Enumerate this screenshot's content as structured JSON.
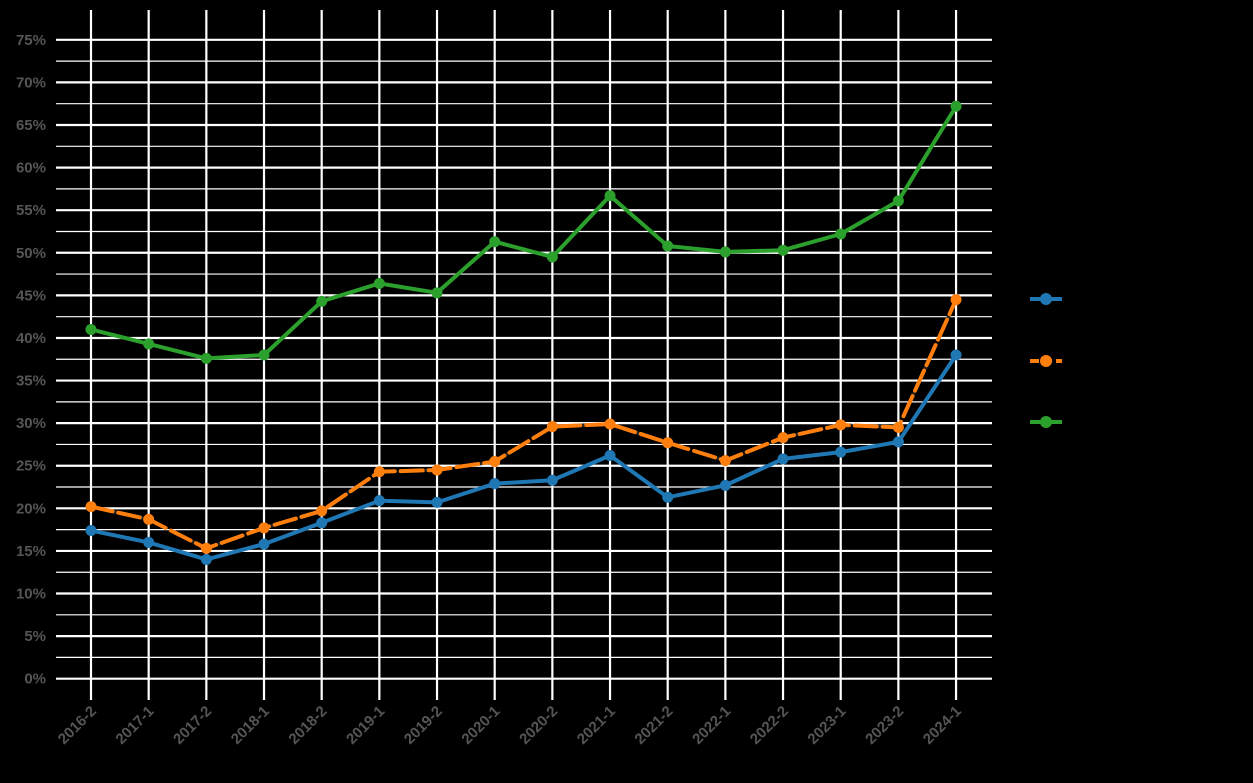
{
  "chart_data": {
    "type": "line",
    "title": "",
    "xlabel": "",
    "ylabel": "",
    "categories": [
      "2016-2",
      "2017-1",
      "2017-2",
      "2018-1",
      "2018-2",
      "2019-1",
      "2019-2",
      "2020-1",
      "2020-2",
      "2021-1",
      "2021-2",
      "2022-1",
      "2022-2",
      "2023-1",
      "2023-2",
      "2024-1"
    ],
    "ylim": [
      -2.5,
      78.5
    ],
    "yticks": [
      0,
      5,
      10,
      15,
      20,
      25,
      30,
      35,
      40,
      45,
      50,
      55,
      60,
      65,
      70,
      75
    ],
    "ytick_labels": [
      "0%",
      "5%",
      "10%",
      "15%",
      "20%",
      "25%",
      "30%",
      "35%",
      "40%",
      "45%",
      "50%",
      "55%",
      "60%",
      "65%",
      "70%",
      "75%"
    ],
    "grid": true,
    "legend": "right",
    "series": [
      {
        "color": "#1f77b4",
        "dashed": false,
        "values": [
          17.4,
          16.0,
          14.0,
          15.8,
          18.3,
          20.9,
          20.7,
          22.9,
          23.3,
          26.2,
          21.3,
          22.7,
          25.8,
          26.6,
          27.8,
          38.0
        ]
      },
      {
        "color": "#ff7f0e",
        "dashed": true,
        "values": [
          20.2,
          18.7,
          15.3,
          17.7,
          19.7,
          24.3,
          24.5,
          25.5,
          29.6,
          29.9,
          27.7,
          25.6,
          28.3,
          29.8,
          29.5,
          44.5
        ]
      },
      {
        "color": "#2ca02c",
        "dashed": false,
        "values": [
          41.0,
          39.3,
          37.6,
          38.0,
          44.3,
          46.4,
          45.3,
          51.3,
          49.5,
          56.7,
          50.8,
          50.1,
          50.3,
          52.2,
          56.1,
          67.2
        ]
      }
    ]
  }
}
